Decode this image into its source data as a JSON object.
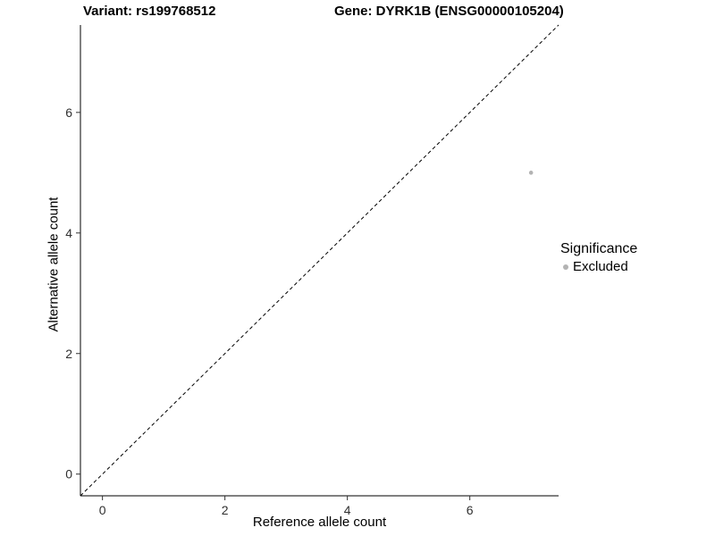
{
  "chart_data": {
    "type": "scatter",
    "title_left": "Variant: rs199768512",
    "title_right": "Gene: DYRK1B (ENSG00000105204)",
    "xlabel": "Reference allele count",
    "ylabel": "Alternative allele count",
    "xlim": [
      -0.36,
      7.45
    ],
    "ylim": [
      -0.36,
      7.45
    ],
    "xticks": [
      0,
      2,
      4,
      6
    ],
    "yticks": [
      0,
      2,
      4,
      6
    ],
    "grid": false,
    "axis_color": "#000000",
    "tick_label_color": "#303030",
    "identity_line": {
      "style": "dashed",
      "color": "#000000",
      "from": [
        -0.36,
        -0.36
      ],
      "to": [
        7.45,
        7.45
      ]
    },
    "series": [
      {
        "name": "Excluded",
        "color": "#b3b3b3",
        "points": [
          {
            "x": 7,
            "y": 5
          }
        ]
      }
    ],
    "legend": {
      "title": "Significance",
      "position": "right",
      "items": [
        {
          "label": "Excluded",
          "color": "#b3b3b3"
        }
      ]
    }
  }
}
